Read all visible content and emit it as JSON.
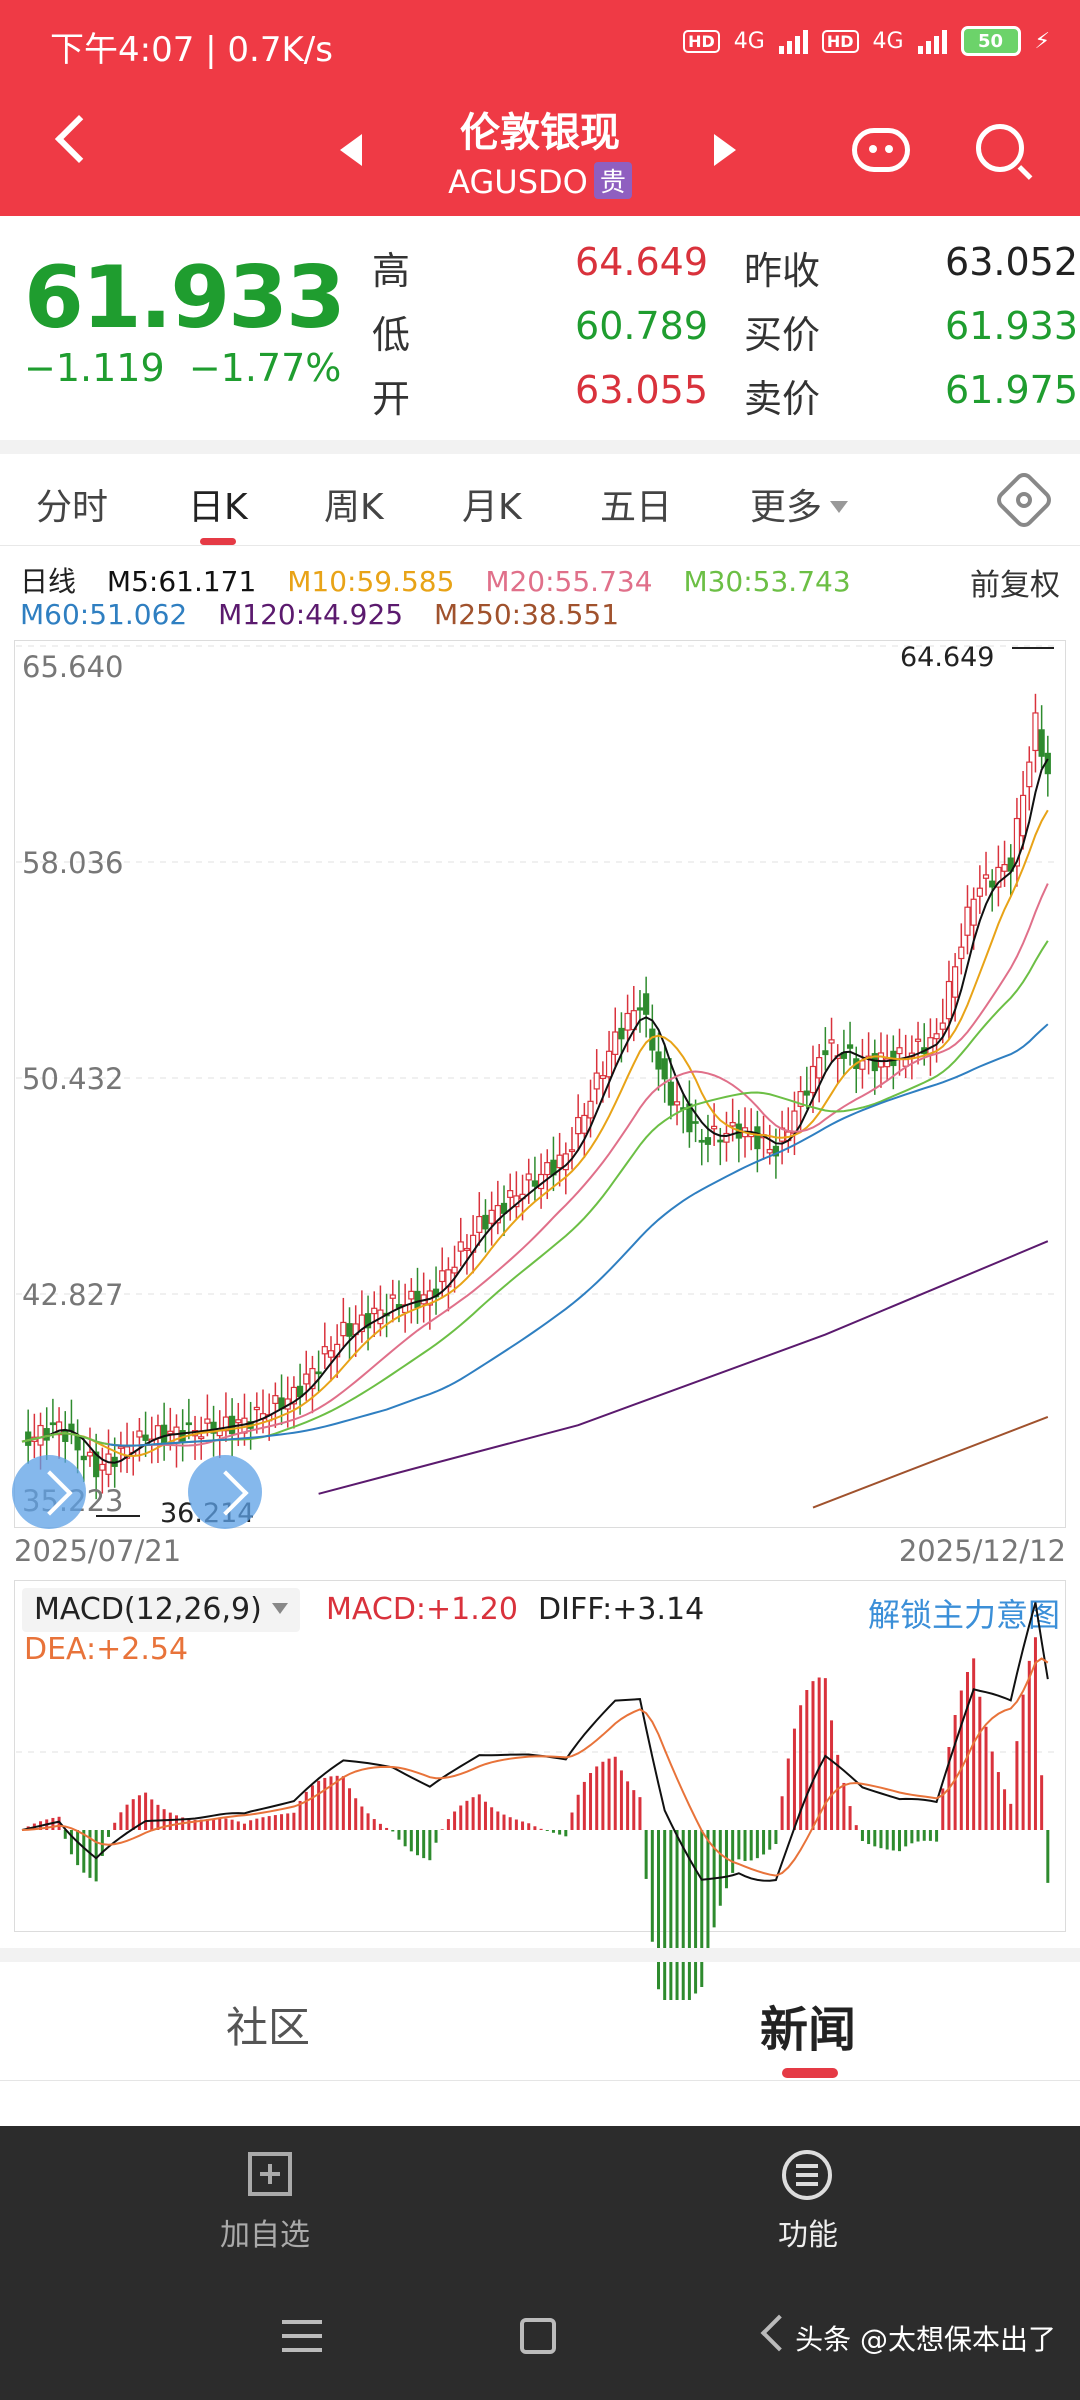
{
  "status": {
    "time_speed": "下午4:07 | 0.7K/s",
    "net1": "4G",
    "net2": "4G",
    "battery": "50",
    "hd": "HD"
  },
  "header": {
    "title": "伦敦银现",
    "code": "AGUSDO",
    "badge": "贵"
  },
  "quote": {
    "price": "61.933",
    "change": "−1.119",
    "change_pct": "−1.77%",
    "high_label": "高",
    "high": "64.649",
    "low_label": "低",
    "low": "60.789",
    "open_label": "开",
    "open": "63.055",
    "prev_close_label": "昨收",
    "prev_close": "63.052",
    "bid_label": "买价",
    "bid": "61.933",
    "ask_label": "卖价",
    "ask": "61.975"
  },
  "tabs": [
    "分时",
    "日K",
    "周K",
    "月K",
    "五日",
    "更多"
  ],
  "ma_legend": {
    "label": "日线",
    "m5": "M5:61.171",
    "m10": "M10:59.585",
    "m20": "M20:55.734",
    "m30": "M30:53.743",
    "m60": "M60:51.062",
    "m120": "M120:44.925",
    "m250": "M250:38.551",
    "adjust": "前复权"
  },
  "colors": {
    "m5": "#111111",
    "m10": "#e8a317",
    "m20": "#e0708a",
    "m30": "#6cbf45",
    "m60": "#2f7fc1",
    "m120": "#5b1a6e",
    "m250": "#a0522d",
    "up": "#d9323c",
    "down": "#2e8b2e",
    "header": "#ef3a45"
  },
  "chart": {
    "y_labels": [
      "65.640",
      "58.036",
      "50.432",
      "42.827",
      "35.223"
    ],
    "max_marker": "64.649",
    "min_marker": "36.214",
    "date_start": "2025/07/21",
    "date_end": "2025/12/12"
  },
  "macd": {
    "selector": "MACD(12,26,9)",
    "macd": "MACD:+1.20",
    "diff": "DIFF:+3.14",
    "dea": "DEA:+2.54",
    "unlock": "解锁主力意图"
  },
  "bottom_tabs": {
    "community": "社区",
    "news": "新闻"
  },
  "bottom_bar": {
    "add": "加自选",
    "func": "功能"
  },
  "watermark": "头条 @太想保本出了"
}
